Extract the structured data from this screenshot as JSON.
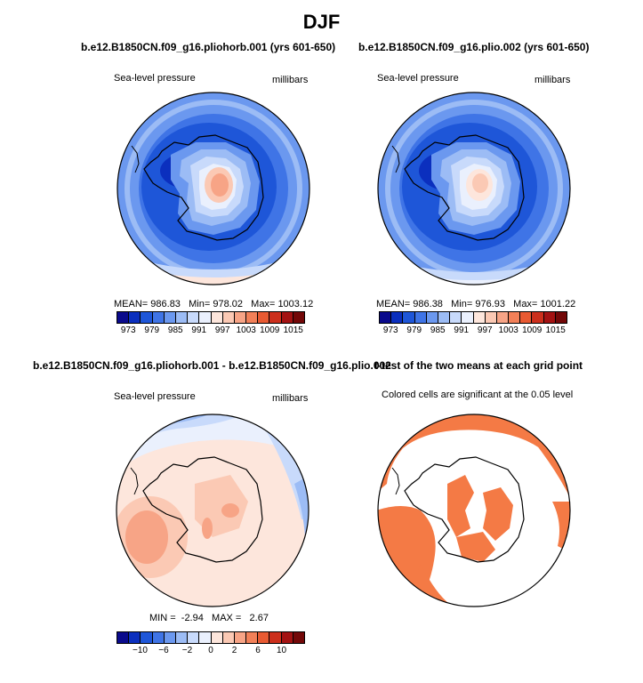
{
  "page_title": "DJF",
  "palette": [
    "#0a0a8c",
    "#0b2fbe",
    "#1e56d8",
    "#3f74e6",
    "#6b98ef",
    "#9cbcf5",
    "#c8dafb",
    "#eaf0fd",
    "#fde6dc",
    "#fbc9b4",
    "#f7a486",
    "#f28058",
    "#e85a32",
    "#cc2f1c",
    "#a31212",
    "#730808"
  ],
  "sig_color": "#f47a45",
  "panels": {
    "p1": {
      "title": "b.e12.B1850CN.f09_g16.pliohorb.001 (yrs 601-650)",
      "left_label": "Sea-level pressure",
      "right_label": "millibars",
      "mean_label": "MEAN=",
      "mean_value": "986.83",
      "min_label": "Min=",
      "min_value": "978.02",
      "max_label": "Max=",
      "max_value": "1003.12",
      "colorbar_labels": [
        "973",
        "979",
        "985",
        "991",
        "997",
        "1003",
        "1009",
        "1015"
      ]
    },
    "p2": {
      "title": "b.e12.B1850CN.f09_g16.plio.002 (yrs 601-650)",
      "left_label": "Sea-level pressure",
      "right_label": "millibars",
      "mean_label": "MEAN=",
      "mean_value": "986.38",
      "min_label": "Min=",
      "min_value": "976.93",
      "max_label": "Max=",
      "max_value": "1001.22",
      "colorbar_labels": [
        "973",
        "979",
        "985",
        "991",
        "997",
        "1003",
        "1009",
        "1015"
      ]
    },
    "p3": {
      "title": "b.e12.B1850CN.f09_g16.pliohorb.001 - b.e12.B1850CN.f09_g16.plio.002",
      "left_label": "Sea-level pressure",
      "right_label": "millibars",
      "min_label": "MIN =",
      "min_value": "-2.94",
      "max_label": "MAX =",
      "max_value": "2.67",
      "colorbar_labels": [
        "−10",
        "−6",
        "−2",
        "0",
        "2",
        "6",
        "10"
      ]
    },
    "p4": {
      "title": "t-test of the two means at each grid point",
      "caption": "Colored cells are significant at the 0.05 level"
    }
  },
  "chart_data": [
    {
      "type": "heatmap",
      "title": "b.e12.B1850CN.f09_g16.pliohorb.001 (yrs 601-650)",
      "variable": "Sea-level pressure",
      "units": "millibars",
      "projection": "south polar stereographic",
      "mean": 986.83,
      "min": 978.02,
      "max": 1003.12,
      "colorbar_ticks": [
        973,
        979,
        985,
        991,
        997,
        1003,
        1009,
        1015
      ]
    },
    {
      "type": "heatmap",
      "title": "b.e12.B1850CN.f09_g16.plio.002 (yrs 601-650)",
      "variable": "Sea-level pressure",
      "units": "millibars",
      "projection": "south polar stereographic",
      "mean": 986.38,
      "min": 976.93,
      "max": 1001.22,
      "colorbar_ticks": [
        973,
        979,
        985,
        991,
        997,
        1003,
        1009,
        1015
      ]
    },
    {
      "type": "heatmap",
      "title": "b.e12.B1850CN.f09_g16.pliohorb.001 - b.e12.B1850CN.f09_g16.plio.002",
      "variable": "Sea-level pressure difference",
      "units": "millibars",
      "min": -2.94,
      "max": 2.67,
      "colorbar_ticks": [
        -10,
        -6,
        -2,
        0,
        2,
        6,
        10
      ]
    },
    {
      "type": "heatmap",
      "title": "t-test of the two means at each grid point",
      "annotation": "Colored cells are significant at the 0.05 level",
      "significance_level": 0.05
    }
  ]
}
